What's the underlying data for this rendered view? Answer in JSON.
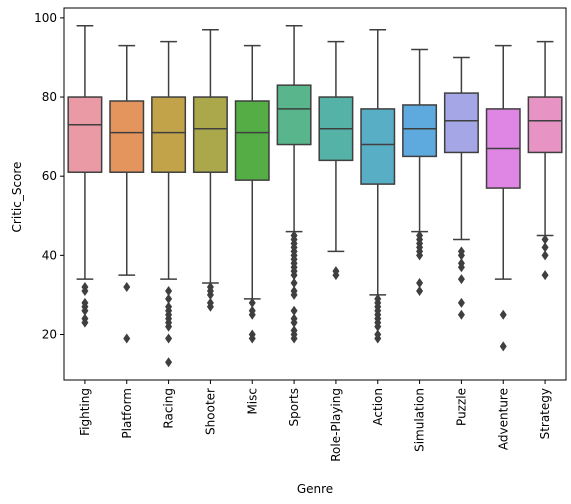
{
  "chart_data": {
    "type": "box",
    "xlabel": "Genre",
    "ylabel": "Critic_Score",
    "ylim": [
      8.5,
      102.5
    ],
    "yticks": [
      20,
      40,
      60,
      80,
      100
    ],
    "grid": false,
    "legend": "none",
    "categories": [
      "Fighting",
      "Platform",
      "Racing",
      "Shooter",
      "Misc",
      "Sports",
      "Role-Playing",
      "Action",
      "Simulation",
      "Puzzle",
      "Adventure",
      "Strategy"
    ],
    "boxes": [
      {
        "whisker_low": 34,
        "q1": 61,
        "median": 73,
        "q3": 80,
        "whisker_high": 98,
        "outliers": [
          23,
          24,
          26,
          27,
          28,
          31,
          32
        ]
      },
      {
        "whisker_low": 35,
        "q1": 61,
        "median": 71,
        "q3": 79,
        "whisker_high": 93,
        "outliers": [
          19,
          32
        ]
      },
      {
        "whisker_low": 34,
        "q1": 61,
        "median": 71,
        "q3": 80,
        "whisker_high": 94,
        "outliers": [
          13,
          19,
          22,
          23,
          24,
          25,
          26,
          27,
          29,
          31
        ]
      },
      {
        "whisker_low": 33,
        "q1": 61,
        "median": 72,
        "q3": 80,
        "whisker_high": 97,
        "outliers": [
          27,
          28,
          30,
          31,
          32
        ]
      },
      {
        "whisker_low": 29,
        "q1": 59,
        "median": 71,
        "q3": 79,
        "whisker_high": 93,
        "outliers": [
          19,
          20,
          25,
          26,
          28
        ]
      },
      {
        "whisker_low": 46,
        "q1": 68,
        "median": 77,
        "q3": 83,
        "whisker_high": 98,
        "outliers": [
          19,
          20,
          21,
          23,
          24,
          26,
          30,
          31,
          33,
          35,
          36,
          37,
          38,
          39,
          40,
          41,
          42,
          43,
          44,
          45
        ]
      },
      {
        "whisker_low": 41,
        "q1": 64,
        "median": 72,
        "q3": 80,
        "whisker_high": 94,
        "outliers": [
          35,
          36
        ]
      },
      {
        "whisker_low": 30,
        "q1": 58,
        "median": 68,
        "q3": 77,
        "whisker_high": 97,
        "outliers": [
          19,
          20,
          22,
          23,
          24,
          25,
          26,
          27,
          28,
          29
        ]
      },
      {
        "whisker_low": 46,
        "q1": 65,
        "median": 72,
        "q3": 78,
        "whisker_high": 92,
        "outliers": [
          31,
          33,
          40,
          41,
          42,
          43,
          44,
          45
        ]
      },
      {
        "whisker_low": 44,
        "q1": 66,
        "median": 74,
        "q3": 81,
        "whisker_high": 90,
        "outliers": [
          25,
          28,
          34,
          37,
          38,
          40,
          41
        ]
      },
      {
        "whisker_low": 34,
        "q1": 57,
        "median": 67,
        "q3": 77,
        "whisker_high": 93,
        "outliers": [
          17,
          25
        ]
      },
      {
        "whisker_low": 45,
        "q1": 66,
        "median": 74,
        "q3": 80,
        "whisker_high": 94,
        "outliers": [
          35,
          40,
          42,
          44
        ]
      }
    ],
    "colors": [
      "#e99aa4",
      "#e3955d",
      "#c3a34a",
      "#aaa84a",
      "#54ad45",
      "#58b58c",
      "#55b2a7",
      "#58aec5",
      "#5ea9dd",
      "#a5a6e5",
      "#df86e4",
      "#e793c3"
    ]
  }
}
